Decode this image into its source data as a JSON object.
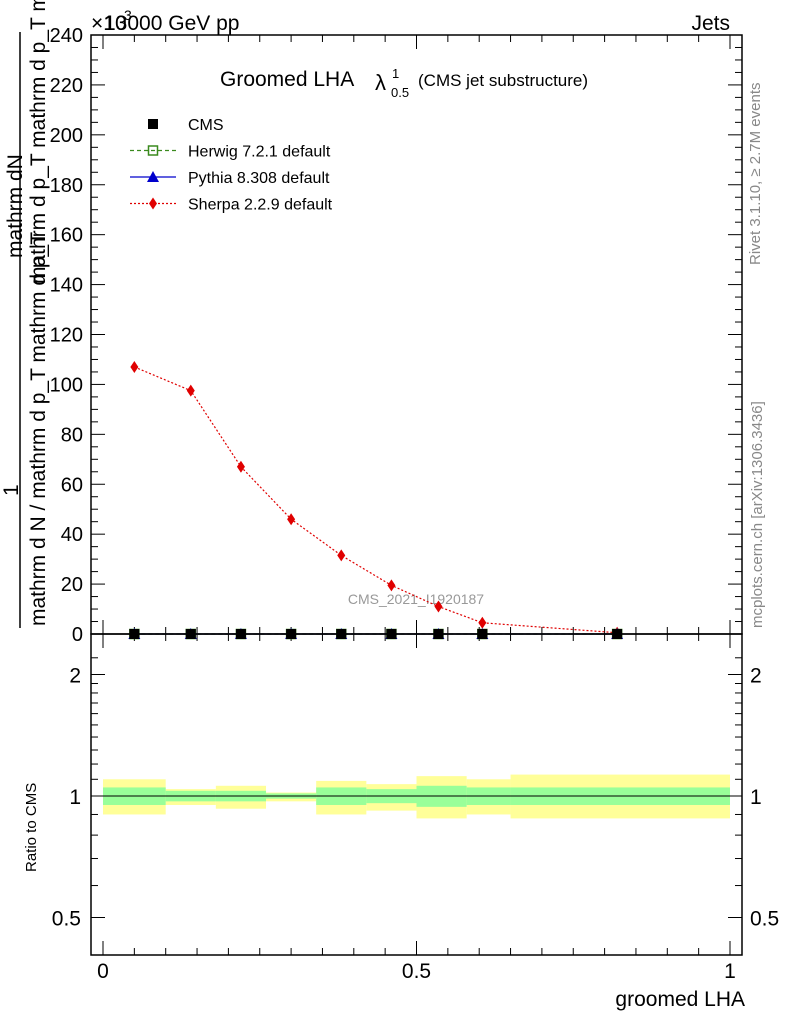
{
  "header": {
    "left": "13000 GeV pp",
    "right": "Jets",
    "exponent_prefix": "×10",
    "exponent": "3"
  },
  "title": {
    "main": "Groomed LHA",
    "lambda": "λ",
    "sup": "1",
    "sub": "0.5",
    "note": "(CMS jet substructure)"
  },
  "watermark": "CMS_2021_I1920187",
  "side_text": {
    "rivet": "Rivet 3.1.10, ≥ 2.7M events",
    "mcplots": "mcplots.cern.ch [arXiv:1306.3436]"
  },
  "axes": {
    "y_main_label_top": "mathrm dN",
    "y_main_label_mid": "mathrm d p_T mathrm d p_T mathrm d lambda",
    "y_main_label_num": "1",
    "y_main_label_den": "mathrm d N / mathrm d p_T mathrm d p_T",
    "y_ratio_label": "Ratio to CMS",
    "x_label": "groomed LHA"
  },
  "legend": [
    {
      "name": "CMS",
      "color": "#000000",
      "marker": "square-filled",
      "line": "none"
    },
    {
      "name": "Herwig 7.2.1 default",
      "color": "#3a8a1e",
      "marker": "square-open",
      "line": "dashed"
    },
    {
      "name": "Pythia 8.308 default",
      "color": "#0000cc",
      "marker": "triangle",
      "line": "solid"
    },
    {
      "name": "Sherpa 2.2.9 default",
      "color": "#e00000",
      "marker": "diamond",
      "line": "dotted"
    }
  ],
  "chart_data": {
    "type": "line",
    "x_ticks": [
      "0",
      "0.5",
      "1"
    ],
    "y_ticks": [
      "0",
      "20",
      "40",
      "60",
      "80",
      "100",
      "120",
      "140",
      "160",
      "180",
      "200",
      "220",
      "240"
    ],
    "ratio_ticks": [
      "0.5",
      "1",
      "2"
    ],
    "xlim": [
      0,
      1
    ],
    "ylim": [
      0,
      240
    ],
    "ratio_ylim": [
      0.4,
      2.4
    ],
    "ratio_log_scale": true,
    "bin_edges": [
      0,
      0.1,
      0.18,
      0.26,
      0.34,
      0.42,
      0.5,
      0.58,
      0.65,
      1.0
    ],
    "series": [
      {
        "name": "CMS",
        "x": [
          0.05,
          0.14,
          0.22,
          0.3,
          0.38,
          0.46,
          0.535,
          0.605,
          0.82
        ],
        "y": [
          0,
          0,
          0,
          0,
          0,
          0,
          0,
          0,
          0
        ]
      },
      {
        "name": "Herwig 7.2.1 default",
        "x": [
          0.05,
          0.14,
          0.22,
          0.3,
          0.38,
          0.46,
          0.535,
          0.605,
          0.82
        ],
        "y": [
          0,
          0,
          0,
          0,
          0,
          0,
          0,
          0,
          0
        ]
      },
      {
        "name": "Pythia 8.308 default",
        "x": [
          0.05,
          0.14,
          0.22,
          0.3,
          0.38,
          0.46,
          0.535,
          0.605,
          0.82
        ],
        "y": [
          0,
          0,
          0,
          0,
          0,
          0,
          0,
          0,
          0
        ]
      },
      {
        "name": "Sherpa 2.2.9 default",
        "x": [
          0.05,
          0.14,
          0.22,
          0.3,
          0.38,
          0.46,
          0.535,
          0.605,
          0.82
        ],
        "y": [
          107,
          97.5,
          67,
          46,
          31.5,
          19.5,
          11,
          4.5,
          0.5
        ]
      }
    ],
    "ratio_bands": {
      "stat": {
        "color": "#99ff99",
        "lo": [
          0.95,
          0.97,
          0.97,
          0.985,
          0.95,
          0.96,
          0.94,
          0.95,
          0.95
        ],
        "hi": [
          1.05,
          1.03,
          1.03,
          1.015,
          1.05,
          1.04,
          1.06,
          1.05,
          1.05
        ]
      },
      "total": {
        "color": "#ffff99",
        "lo": [
          0.9,
          0.95,
          0.93,
          0.97,
          0.9,
          0.92,
          0.88,
          0.9,
          0.88
        ],
        "hi": [
          1.1,
          1.04,
          1.06,
          1.02,
          1.09,
          1.07,
          1.12,
          1.1,
          1.13
        ]
      }
    }
  }
}
